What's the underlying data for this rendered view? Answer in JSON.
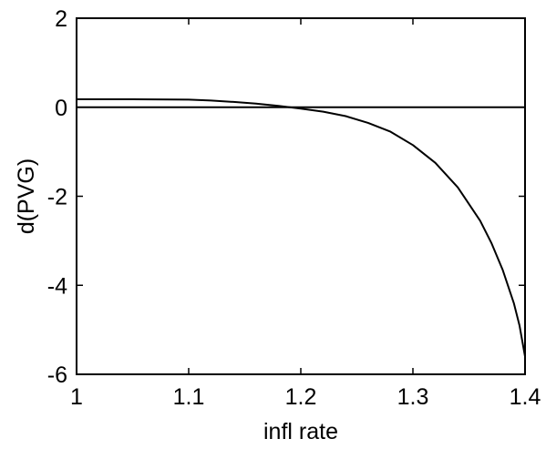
{
  "chart_data": {
    "type": "line",
    "xlabel": "infl rate",
    "ylabel": "d(PVG)",
    "xlim": [
      1,
      1.4
    ],
    "ylim": [
      -6,
      2
    ],
    "xticks": [
      1,
      1.1,
      1.2,
      1.3,
      1.4
    ],
    "xtick_labels": [
      "1",
      "1.1",
      "1.2",
      "1.3",
      "1.4"
    ],
    "yticks": [
      2,
      0,
      -2,
      -4,
      -6
    ],
    "ytick_labels": [
      "2",
      "0",
      "-2",
      "-4",
      "-6"
    ],
    "grid": false,
    "series": [
      {
        "x": [
          1.0,
          1.05,
          1.1,
          1.12,
          1.14,
          1.16,
          1.18,
          1.2,
          1.22,
          1.24,
          1.26,
          1.28,
          1.3,
          1.32,
          1.34,
          1.36,
          1.37,
          1.38,
          1.39,
          1.395,
          1.4
        ],
        "y": [
          0.18,
          0.18,
          0.17,
          0.15,
          0.12,
          0.08,
          0.03,
          -0.03,
          -0.1,
          -0.2,
          -0.35,
          -0.55,
          -0.85,
          -1.25,
          -1.8,
          -2.55,
          -3.05,
          -3.65,
          -4.4,
          -4.9,
          -5.6
        ]
      },
      {
        "x": [
          1.0,
          1.4
        ],
        "y": [
          0,
          0
        ]
      }
    ],
    "colors": {
      "line": "#000000",
      "axes": "#000000",
      "background": "#ffffff"
    }
  }
}
